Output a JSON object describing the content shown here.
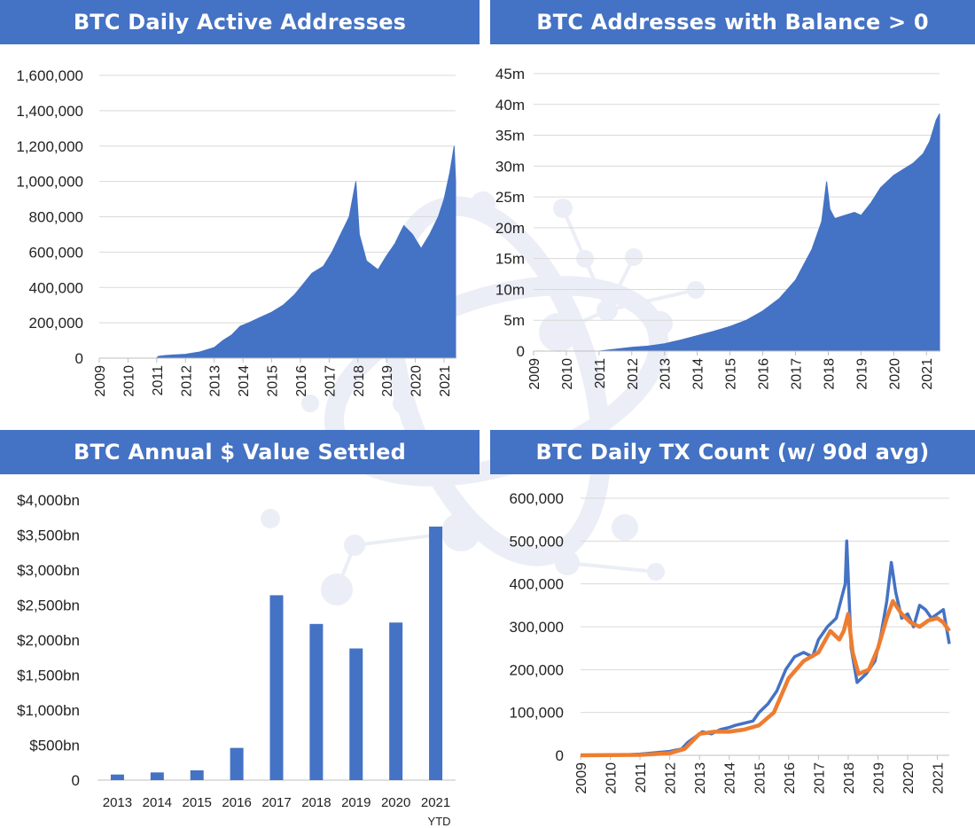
{
  "colors": {
    "accent": "#4472c4",
    "average_line": "#ed7d31",
    "gridline": "#d9d9d9"
  },
  "panels": [
    {
      "title": "BTC Daily Active Addresses"
    },
    {
      "title": "BTC Addresses with Balance > 0"
    },
    {
      "title": "BTC Annual $ Value Settled"
    },
    {
      "title": "BTC Daily TX Count (w/ 90d avg)"
    }
  ],
  "chart_data": [
    {
      "type": "area",
      "title": "BTC Daily Active Addresses",
      "x_tick_labels": [
        "2009",
        "2010",
        "2011",
        "2012",
        "2013",
        "2014",
        "2015",
        "2016",
        "2017",
        "2018",
        "2019",
        "2020",
        "2021"
      ],
      "y_tick_labels": [
        "0",
        "200,000",
        "400,000",
        "600,000",
        "800,000",
        "1,000,000",
        "1,200,000",
        "1,400,000",
        "1,600,000"
      ],
      "ylim": [
        0,
        1600000
      ],
      "xlim": [
        2009,
        2021.4
      ],
      "grid": true,
      "series": [
        {
          "name": "Daily Active Addresses",
          "x": [
            2009,
            2011.0,
            2011.05,
            2011.3,
            2011.6,
            2012.0,
            2012.5,
            2013.0,
            2013.3,
            2013.6,
            2013.9,
            2014.2,
            2014.6,
            2015.0,
            2015.4,
            2015.8,
            2016.1,
            2016.4,
            2016.8,
            2017.1,
            2017.4,
            2017.7,
            2017.93,
            2018.05,
            2018.3,
            2018.7,
            2019.0,
            2019.3,
            2019.6,
            2019.9,
            2020.2,
            2020.5,
            2020.8,
            2021.0,
            2021.2,
            2021.35,
            2021.4
          ],
          "values": [
            0,
            0,
            10000,
            15000,
            18000,
            22000,
            35000,
            60000,
            100000,
            130000,
            180000,
            200000,
            230000,
            260000,
            300000,
            360000,
            420000,
            480000,
            520000,
            600000,
            700000,
            800000,
            1000000,
            700000,
            550000,
            500000,
            580000,
            650000,
            750000,
            700000,
            620000,
            700000,
            800000,
            900000,
            1050000,
            1200000,
            1000000
          ]
        }
      ]
    },
    {
      "type": "area",
      "title": "BTC Addresses with Balance > 0",
      "x_tick_labels": [
        "2009",
        "2010",
        "2011",
        "2012",
        "2013",
        "2014",
        "2015",
        "2016",
        "2017",
        "2018",
        "2019",
        "2020",
        "2021"
      ],
      "y_tick_labels": [
        "0",
        "5m",
        "10m",
        "15m",
        "20m",
        "25m",
        "30m",
        "35m",
        "40m",
        "45m"
      ],
      "ylim": [
        0,
        45
      ],
      "xlim": [
        2009,
        2021.4
      ],
      "grid": true,
      "series": [
        {
          "name": "Addresses with Balance > 0 (millions)",
          "x": [
            2009,
            2011.0,
            2011.5,
            2012.0,
            2012.5,
            2013.0,
            2013.5,
            2014.0,
            2014.5,
            2015.0,
            2015.5,
            2016.0,
            2016.5,
            2017.0,
            2017.5,
            2017.8,
            2017.95,
            2018.05,
            2018.2,
            2018.5,
            2018.8,
            2019.0,
            2019.3,
            2019.6,
            2020.0,
            2020.3,
            2020.6,
            2020.9,
            2021.1,
            2021.3,
            2021.4
          ],
          "values": [
            0,
            0,
            0.3,
            0.6,
            0.8,
            1.2,
            1.8,
            2.5,
            3.2,
            4.0,
            5.0,
            6.5,
            8.5,
            11.5,
            16.5,
            21.0,
            27.5,
            23.0,
            21.5,
            22.0,
            22.5,
            22.0,
            24.0,
            26.5,
            28.5,
            29.5,
            30.5,
            32.0,
            34.0,
            37.5,
            38.5
          ]
        }
      ]
    },
    {
      "type": "bar",
      "title": "BTC Annual $ Value Settled",
      "categories": [
        "2013",
        "2014",
        "2015",
        "2016",
        "2017",
        "2018",
        "2019",
        "2020",
        "2021"
      ],
      "category_sublabels": [
        "",
        "",
        "",
        "",
        "",
        "",
        "",
        "",
        "YTD"
      ],
      "values": [
        80,
        110,
        140,
        460,
        2640,
        2230,
        1880,
        2250,
        3620
      ],
      "unit": "$bn",
      "y_tick_labels": [
        "0",
        "$500bn",
        "$1,000bn",
        "$1,500bn",
        "$2,000bn",
        "$2,500bn",
        "$3,000bn",
        "$3,500bn",
        "$4,000bn"
      ],
      "ylim": [
        0,
        4000
      ],
      "grid": false
    },
    {
      "type": "line",
      "title": "BTC Daily TX Count (w/ 90d avg)",
      "x_tick_labels": [
        "2009",
        "2010",
        "2011",
        "2012",
        "2013",
        "2014",
        "2015",
        "2016",
        "2017",
        "2018",
        "2019",
        "2020",
        "2021"
      ],
      "y_tick_labels": [
        "0",
        "100,000",
        "200,000",
        "300,000",
        "400,000",
        "500,000",
        "600,000"
      ],
      "ylim": [
        0,
        600000
      ],
      "xlim": [
        2009,
        2021.4
      ],
      "grid": true,
      "series": [
        {
          "name": "Daily TX Count",
          "x": [
            2009,
            2010.0,
            2010.5,
            2011.0,
            2011.5,
            2012.0,
            2012.4,
            2012.6,
            2012.9,
            2013.1,
            2013.4,
            2013.7,
            2014.0,
            2014.2,
            2014.5,
            2014.8,
            2015.0,
            2015.3,
            2015.6,
            2015.9,
            2016.2,
            2016.5,
            2016.8,
            2017.0,
            2017.3,
            2017.6,
            2017.9,
            2017.95,
            2018.1,
            2018.3,
            2018.6,
            2018.9,
            2019.1,
            2019.3,
            2019.45,
            2019.6,
            2019.8,
            2020.0,
            2020.2,
            2020.4,
            2020.6,
            2020.8,
            2021.0,
            2021.2,
            2021.4
          ],
          "values": [
            0,
            500,
            1000,
            3000,
            6000,
            9000,
            15000,
            30000,
            45000,
            55000,
            50000,
            60000,
            65000,
            70000,
            75000,
            80000,
            100000,
            120000,
            150000,
            200000,
            230000,
            240000,
            230000,
            270000,
            300000,
            320000,
            400000,
            500000,
            250000,
            170000,
            190000,
            220000,
            280000,
            360000,
            450000,
            380000,
            320000,
            330000,
            300000,
            350000,
            340000,
            320000,
            330000,
            340000,
            260000
          ]
        },
        {
          "name": "90d avg",
          "x": [
            2009,
            2011.0,
            2012.0,
            2012.5,
            2013.0,
            2013.5,
            2014.0,
            2014.5,
            2015.0,
            2015.5,
            2016.0,
            2016.5,
            2017.0,
            2017.4,
            2017.7,
            2017.85,
            2018.0,
            2018.15,
            2018.35,
            2018.7,
            2019.0,
            2019.3,
            2019.5,
            2019.8,
            2020.1,
            2020.4,
            2020.7,
            2021.0,
            2021.2,
            2021.4
          ],
          "values": [
            0,
            1000,
            5000,
            15000,
            50000,
            55000,
            55000,
            60000,
            70000,
            100000,
            180000,
            220000,
            240000,
            290000,
            270000,
            290000,
            330000,
            240000,
            190000,
            200000,
            250000,
            320000,
            360000,
            330000,
            310000,
            300000,
            315000,
            320000,
            310000,
            290000
          ]
        }
      ]
    }
  ]
}
